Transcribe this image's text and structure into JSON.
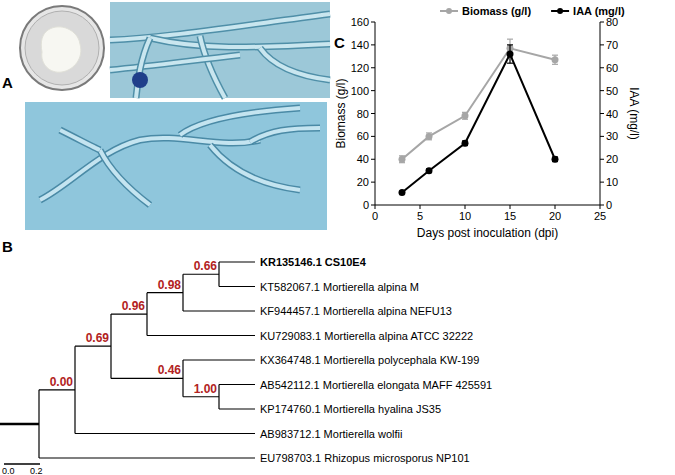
{
  "panel_labels": [
    "A",
    "B",
    "C"
  ],
  "tree": {
    "leaves": [
      {
        "label": "KR135146.1 CS10E4",
        "bold": true
      },
      {
        "label": "KT582067.1 Mortierella alpina M",
        "bold": false
      },
      {
        "label": "KF944457.1 Mortierella alpina NEFU13",
        "bold": false
      },
      {
        "label": "KU729083.1 Mortierella alpina ATCC 32222",
        "bold": false
      },
      {
        "label": "KX364748.1 Mortierella polycephala KW-199",
        "bold": false
      },
      {
        "label": "AB542112.1 Mortierella elongata MAFF 425591",
        "bold": false
      },
      {
        "label": "KP174760.1 Mortierella hyalina JS35",
        "bold": false
      },
      {
        "label": "AB983712.1 Mortierella wolfii",
        "bold": false
      },
      {
        "label": "EU798703.1 Rhizopus microsporus NP101",
        "bold": false
      }
    ],
    "root": {
      "children": [
        {
          "support": "0.00",
          "children": [
            {
              "support": "0.69",
              "children": [
                {
                  "support": "0.96",
                  "children": [
                    {
                      "support": "0.98",
                      "children": [
                        {
                          "support": "0.66",
                          "children": [
                            0,
                            1
                          ]
                        },
                        2
                      ]
                    },
                    3
                  ]
                },
                {
                  "support": "0.46",
                  "children": [
                    4,
                    {
                      "support": "1.00",
                      "children": [
                        5,
                        6
                      ]
                    }
                  ]
                }
              ]
            },
            7
          ]
        },
        8
      ]
    },
    "scale_labels": [
      "0.0",
      "0.2"
    ]
  },
  "chart_data": {
    "type": "line",
    "x_label": "Days post inoculation (dpi)",
    "y_label": "Biomass (g/l)",
    "y2_label": "IAA (mg/l)",
    "x": [
      3,
      6,
      10,
      15,
      20
    ],
    "xlim": [
      0,
      25
    ],
    "xticks": [
      0,
      5,
      10,
      15,
      20,
      25
    ],
    "ylim": [
      0,
      160
    ],
    "yticks": [
      0,
      20,
      40,
      60,
      80,
      100,
      120,
      140,
      160
    ],
    "y2lim": [
      0,
      80
    ],
    "y2ticks": [
      0,
      10,
      20,
      30,
      40,
      50,
      60,
      70,
      80
    ],
    "legend": "top",
    "series": [
      {
        "name": "Biomass (g/l)",
        "color": "#a6a6a6",
        "marker": "circle",
        "values": [
          40,
          60,
          78,
          137,
          127
        ],
        "errors": [
          3,
          3,
          3,
          8,
          4
        ]
      },
      {
        "name": "IAA (mg/l)",
        "color": "#000000",
        "marker": "circle",
        "axis": "y2",
        "values": [
          5.5,
          15,
          27,
          66,
          20
        ],
        "errors": [
          0.5,
          0.8,
          1,
          4,
          1
        ]
      }
    ]
  }
}
